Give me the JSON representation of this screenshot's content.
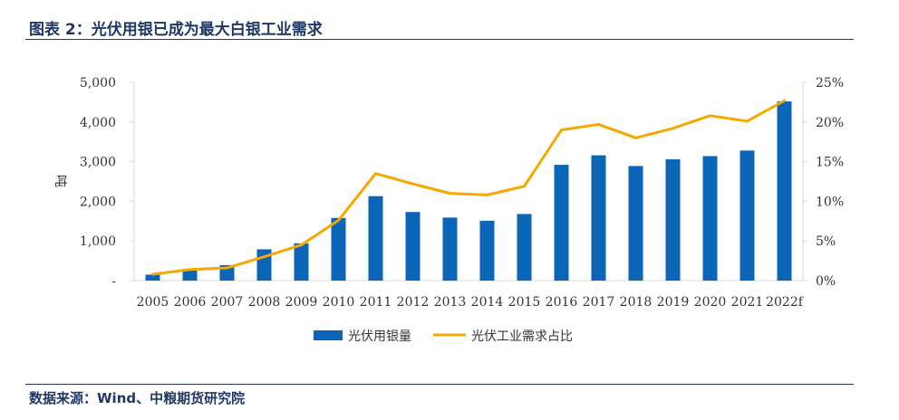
{
  "header": {
    "title": "图表 2：光伏用银已成为最大白银工业需求"
  },
  "footer": {
    "source": "数据来源：Wind、中粮期货研究院"
  },
  "chart_data": {
    "type": "bar+line",
    "categories": [
      "2005",
      "2006",
      "2007",
      "2008",
      "2009",
      "2010",
      "2011",
      "2012",
      "2013",
      "2014",
      "2015",
      "2016",
      "2017",
      "2018",
      "2019",
      "2020",
      "2021",
      "2022f"
    ],
    "series": [
      {
        "name": "光伏用银量",
        "type": "bar",
        "axis": "left",
        "color": "#0b66b8",
        "values": [
          150,
          290,
          390,
          790,
          940,
          1580,
          2130,
          1730,
          1590,
          1510,
          1680,
          2920,
          3160,
          2890,
          3060,
          3140,
          3280,
          4520
        ]
      },
      {
        "name": "光伏工业需求占比",
        "type": "line",
        "axis": "right",
        "color": "#f5a800",
        "values": [
          0.8,
          1.4,
          1.6,
          3.0,
          4.5,
          7.6,
          13.5,
          12.2,
          11.0,
          10.8,
          11.9,
          19.0,
          19.7,
          18.0,
          19.2,
          20.8,
          20.1,
          22.7
        ]
      }
    ],
    "y_left": {
      "label": "吨",
      "min": 0,
      "max": 5000,
      "ticks": [
        "-",
        "1,000",
        "2,000",
        "3,000",
        "4,000",
        "5,000"
      ]
    },
    "y_right": {
      "min": 0,
      "max": 25,
      "ticks": [
        "0%",
        "5%",
        "10%",
        "15%",
        "20%",
        "25%"
      ]
    },
    "legend": {
      "position": "bottom",
      "items": [
        "光伏用银量",
        "光伏工业需求占比"
      ]
    }
  }
}
